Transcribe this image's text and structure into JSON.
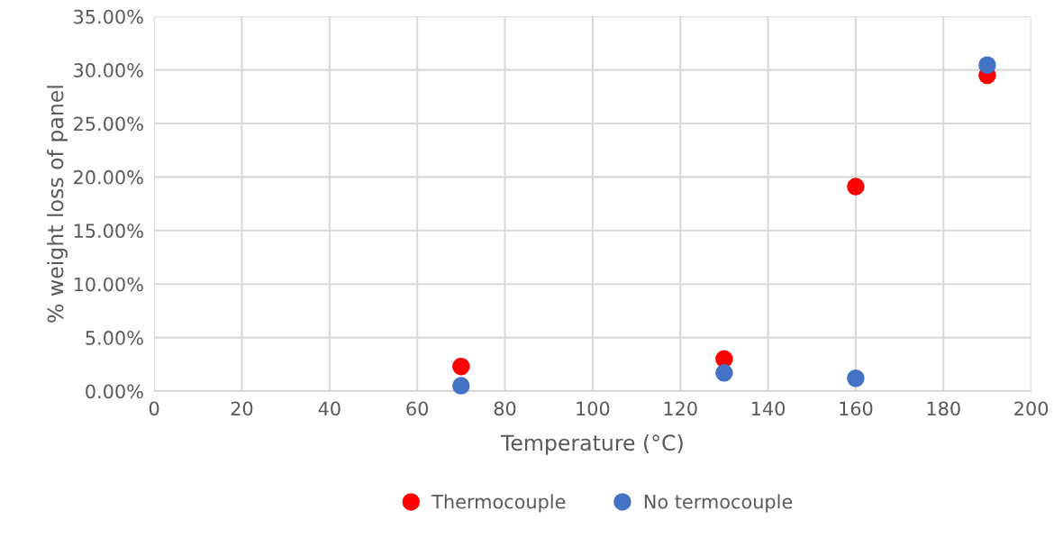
{
  "chart_data": {
    "type": "scatter",
    "xlabel": "Temperature (°C)",
    "ylabel": "% weight loss of panel",
    "xlim": [
      0,
      200
    ],
    "xticks": [
      0,
      20,
      40,
      60,
      80,
      100,
      120,
      140,
      160,
      180,
      200
    ],
    "ylim": [
      0,
      35
    ],
    "yticks": [
      {
        "value": 0,
        "label": "0.00%"
      },
      {
        "value": 5,
        "label": "5.00%"
      },
      {
        "value": 10,
        "label": "10.00%"
      },
      {
        "value": 15,
        "label": "15.00%"
      },
      {
        "value": 20,
        "label": "20.00%"
      },
      {
        "value": 25,
        "label": "25.00%"
      },
      {
        "value": 30,
        "label": "30.00%"
      },
      {
        "value": 35,
        "label": "35.00%"
      }
    ],
    "grid": true,
    "legend": "bottom",
    "marker": "circle",
    "series": [
      {
        "name": "Thermocouple",
        "color": "#ff0000",
        "x": [
          70,
          130,
          160,
          190
        ],
        "values": [
          2.3,
          3.0,
          19.1,
          29.5
        ]
      },
      {
        "name": "No termocouple",
        "color": "#4472c4",
        "x": [
          70,
          130,
          160,
          190
        ],
        "values": [
          0.5,
          1.7,
          1.2,
          30.45
        ]
      }
    ]
  }
}
